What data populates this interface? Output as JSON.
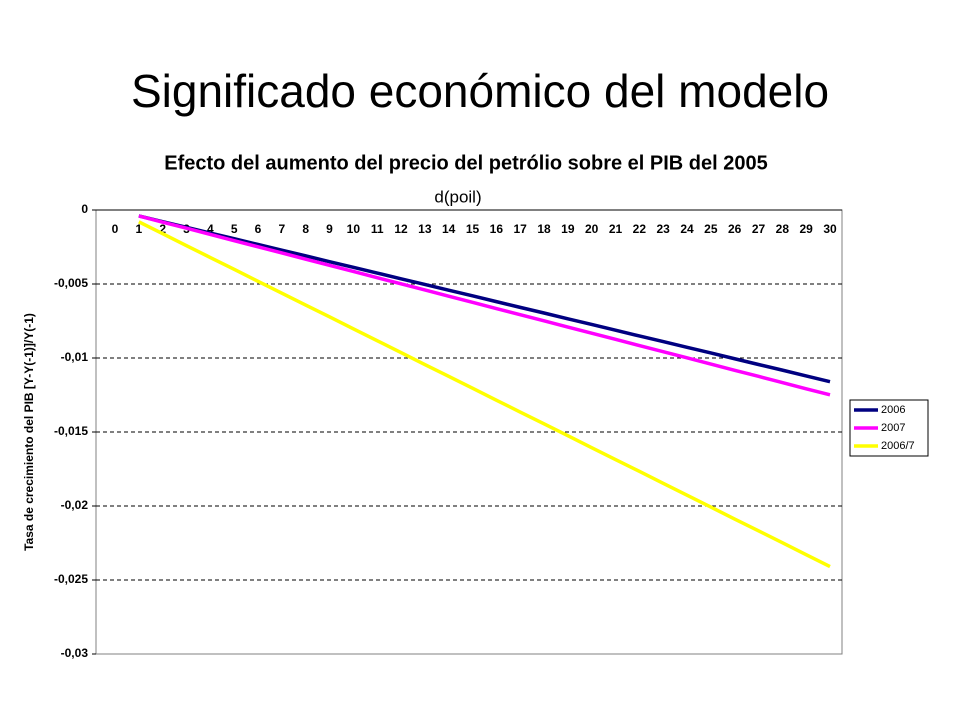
{
  "slide": {
    "title": "Significado económico del modelo"
  },
  "chart_data": {
    "type": "line",
    "title": "Efecto del aumento del precio del petrólio sobre el PIB del 2005",
    "x_label": "d(poil)",
    "y_label": "Tasa de crecimiento del PIB [Y-Y(-1)]/Y(-1)",
    "categories": [
      "0",
      "1",
      "2",
      "3",
      "4",
      "5",
      "6",
      "7",
      "8",
      "9",
      "10",
      "11",
      "12",
      "13",
      "14",
      "15",
      "16",
      "17",
      "18",
      "19",
      "20",
      "21",
      "22",
      "23",
      "24",
      "25",
      "26",
      "27",
      "28",
      "29",
      "30"
    ],
    "series": [
      {
        "name": "2006",
        "color": "#000080",
        "values": [
          null,
          -0.0004,
          -0.00079,
          -0.00117,
          -0.00156,
          -0.00194,
          -0.00233,
          -0.00272,
          -0.0031,
          -0.00349,
          -0.00387,
          -0.00426,
          -0.00465,
          -0.00503,
          -0.00542,
          -0.0058,
          -0.00619,
          -0.00658,
          -0.00696,
          -0.00735,
          -0.00773,
          -0.00812,
          -0.00851,
          -0.00889,
          -0.00928,
          -0.00966,
          -0.01005,
          -0.01044,
          -0.01082,
          -0.01121,
          -0.0116
        ]
      },
      {
        "name": "2007",
        "color": "#ff00ff",
        "values": [
          null,
          -0.0004,
          -0.00082,
          -0.00123,
          -0.00165,
          -0.00207,
          -0.00249,
          -0.0029,
          -0.00332,
          -0.00374,
          -0.00415,
          -0.00457,
          -0.00499,
          -0.0054,
          -0.00582,
          -0.00624,
          -0.00666,
          -0.00707,
          -0.00749,
          -0.00791,
          -0.00832,
          -0.00874,
          -0.00916,
          -0.00957,
          -0.00999,
          -0.01041,
          -0.01083,
          -0.01124,
          -0.01166,
          -0.01208,
          -0.01249
        ]
      },
      {
        "name": "2006/7",
        "color": "#ffff00",
        "values": [
          null,
          -0.0008,
          -0.0016,
          -0.00241,
          -0.00321,
          -0.00401,
          -0.00482,
          -0.00562,
          -0.00642,
          -0.00722,
          -0.00803,
          -0.00883,
          -0.00963,
          -0.01044,
          -0.01124,
          -0.01204,
          -0.01285,
          -0.01365,
          -0.01445,
          -0.01525,
          -0.01606,
          -0.01686,
          -0.01766,
          -0.01847,
          -0.01927,
          -0.02007,
          -0.02088,
          -0.02168,
          -0.02248,
          -0.02329,
          -0.02409
        ]
      }
    ],
    "ylim": [
      -0.03,
      0
    ],
    "yticks": [
      0,
      {
        "value": -0.005,
        "label": "-0,005"
      },
      {
        "value": -0.01,
        "label": "-0,01"
      },
      {
        "value": -0.015,
        "label": "-0,015"
      },
      {
        "value": -0.02,
        "label": "-0,02"
      },
      {
        "value": -0.025,
        "label": "-0,025"
      },
      {
        "value": -0.03,
        "label": "-0,03"
      }
    ],
    "grid": true,
    "grid_style": "dashed",
    "legend": "right"
  }
}
